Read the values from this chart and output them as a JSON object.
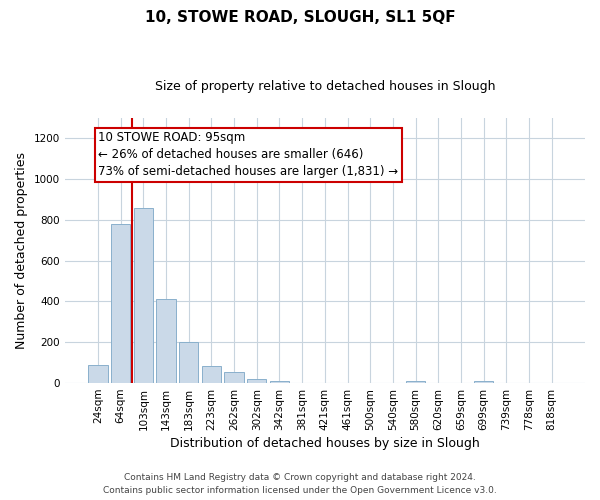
{
  "title": "10, STOWE ROAD, SLOUGH, SL1 5QF",
  "subtitle": "Size of property relative to detached houses in Slough",
  "xlabel": "Distribution of detached houses by size in Slough",
  "ylabel": "Number of detached properties",
  "bar_labels": [
    "24sqm",
    "64sqm",
    "103sqm",
    "143sqm",
    "183sqm",
    "223sqm",
    "262sqm",
    "302sqm",
    "342sqm",
    "381sqm",
    "421sqm",
    "461sqm",
    "500sqm",
    "540sqm",
    "580sqm",
    "620sqm",
    "659sqm",
    "699sqm",
    "739sqm",
    "778sqm",
    "818sqm"
  ],
  "bar_values": [
    90,
    780,
    860,
    410,
    200,
    85,
    53,
    22,
    8,
    2,
    1,
    0,
    0,
    0,
    12,
    0,
    0,
    12,
    0,
    0,
    0
  ],
  "bar_color": "#cad9e8",
  "bar_edge_color": "#8ab0cc",
  "vline_color": "#cc0000",
  "vline_x_index": 2,
  "ylim": [
    0,
    1300
  ],
  "yticks": [
    0,
    200,
    400,
    600,
    800,
    1000,
    1200
  ],
  "anno_line1": "10 STOWE ROAD: 95sqm",
  "anno_line2": "← 26% of detached houses are smaller (646)",
  "anno_line3": "73% of semi-detached houses are larger (1,831) →",
  "anno_box_edge_color": "#cc0000",
  "footer_line1": "Contains HM Land Registry data © Crown copyright and database right 2024.",
  "footer_line2": "Contains public sector information licensed under the Open Government Licence v3.0.",
  "background_color": "#ffffff",
  "grid_color": "#c8d4de",
  "title_fontsize": 11,
  "subtitle_fontsize": 9,
  "axis_label_fontsize": 9,
  "tick_fontsize": 7.5,
  "anno_fontsize": 8.5,
  "footer_fontsize": 6.5
}
